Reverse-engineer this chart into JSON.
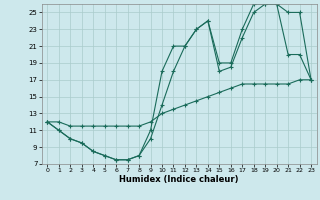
{
  "xlabel": "Humidex (Indice chaleur)",
  "bg_color": "#cde8ec",
  "grid_color": "#aacccc",
  "line_color": "#1a6b5a",
  "xlim": [
    -0.5,
    23.5
  ],
  "ylim": [
    7,
    26
  ],
  "xticks": [
    0,
    1,
    2,
    3,
    4,
    5,
    6,
    7,
    8,
    9,
    10,
    11,
    12,
    13,
    14,
    15,
    16,
    17,
    18,
    19,
    20,
    21,
    22,
    23
  ],
  "yticks": [
    7,
    9,
    11,
    13,
    15,
    17,
    19,
    21,
    23,
    25
  ],
  "line1_x": [
    0,
    1,
    2,
    3,
    4,
    5,
    6,
    7,
    8,
    9,
    10,
    11,
    12,
    13,
    14,
    15,
    16,
    17,
    18,
    19,
    20,
    21,
    22,
    23
  ],
  "line1_y": [
    12,
    11,
    10,
    9.5,
    8.5,
    8,
    7.5,
    7.5,
    8,
    10,
    14,
    18,
    21,
    23,
    24,
    18,
    18.5,
    22,
    25,
    26,
    26,
    25,
    25,
    17
  ],
  "line2_x": [
    0,
    1,
    2,
    3,
    4,
    5,
    6,
    7,
    8,
    9,
    10,
    11,
    12,
    13,
    14,
    15,
    16,
    17,
    18,
    19,
    20,
    21,
    22,
    23
  ],
  "line2_y": [
    12,
    11,
    10,
    9.5,
    8.5,
    8,
    7.5,
    7.5,
    8,
    11,
    18,
    21,
    21,
    23,
    24,
    19,
    19,
    23,
    26,
    26,
    26,
    20,
    20,
    17
  ],
  "line3_x": [
    0,
    1,
    2,
    3,
    4,
    5,
    6,
    7,
    8,
    9,
    10,
    11,
    12,
    13,
    14,
    15,
    16,
    17,
    18,
    19,
    20,
    21,
    22,
    23
  ],
  "line3_y": [
    12,
    12,
    11.5,
    11.5,
    11.5,
    11.5,
    11.5,
    11.5,
    11.5,
    12,
    13,
    13.5,
    14,
    14.5,
    15,
    15.5,
    16,
    16.5,
    16.5,
    16.5,
    16.5,
    16.5,
    17,
    17
  ]
}
